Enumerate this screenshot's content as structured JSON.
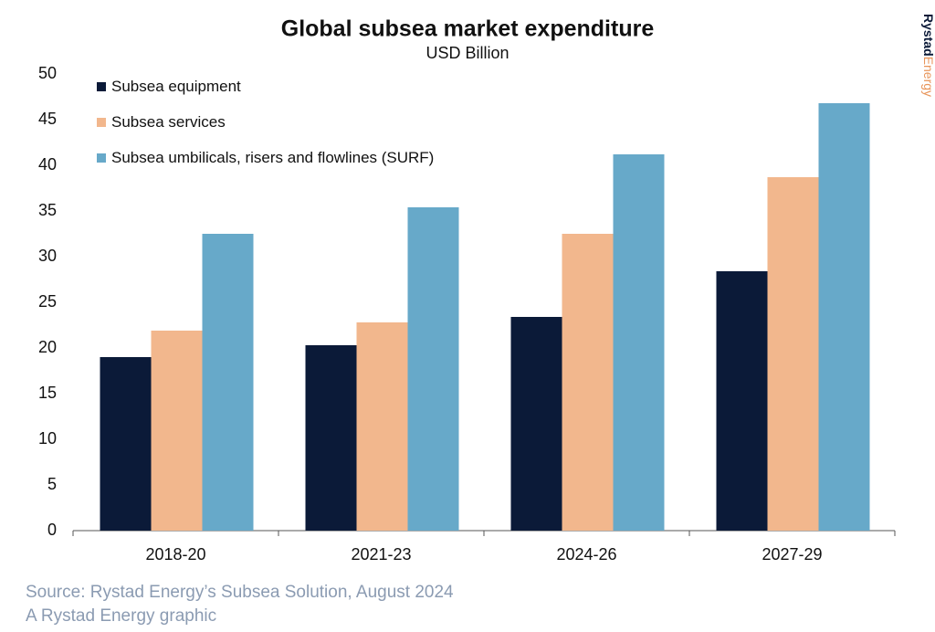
{
  "chart_data": {
    "type": "bar",
    "title": "Global subsea market expenditure",
    "subtitle": "USD Billion",
    "categories": [
      "2018-20",
      "2021-23",
      "2024-26",
      "2027-29"
    ],
    "series": [
      {
        "name": "Subsea equipment",
        "color": "#0b1a38",
        "values": [
          19.0,
          20.3,
          23.4,
          28.4
        ]
      },
      {
        "name": "Subsea services",
        "color": "#f2b78d",
        "values": [
          21.9,
          22.8,
          32.5,
          38.7
        ]
      },
      {
        "name": "Subsea umbilicals, risers and flowlines (SURF)",
        "color": "#67a9c9",
        "values": [
          32.5,
          35.4,
          41.2,
          46.8
        ]
      }
    ],
    "ylim": [
      0,
      50
    ],
    "yticks": [
      0,
      5,
      10,
      15,
      20,
      25,
      30,
      35,
      40,
      45,
      50
    ],
    "grid": false,
    "legend": "top-left",
    "source": "Source: Rystad Energy’s Subsea Solution, August 2024",
    "credit": "A Rystad Energy graphic"
  },
  "brand": {
    "bold": "Rystad",
    "light": "Energy"
  }
}
